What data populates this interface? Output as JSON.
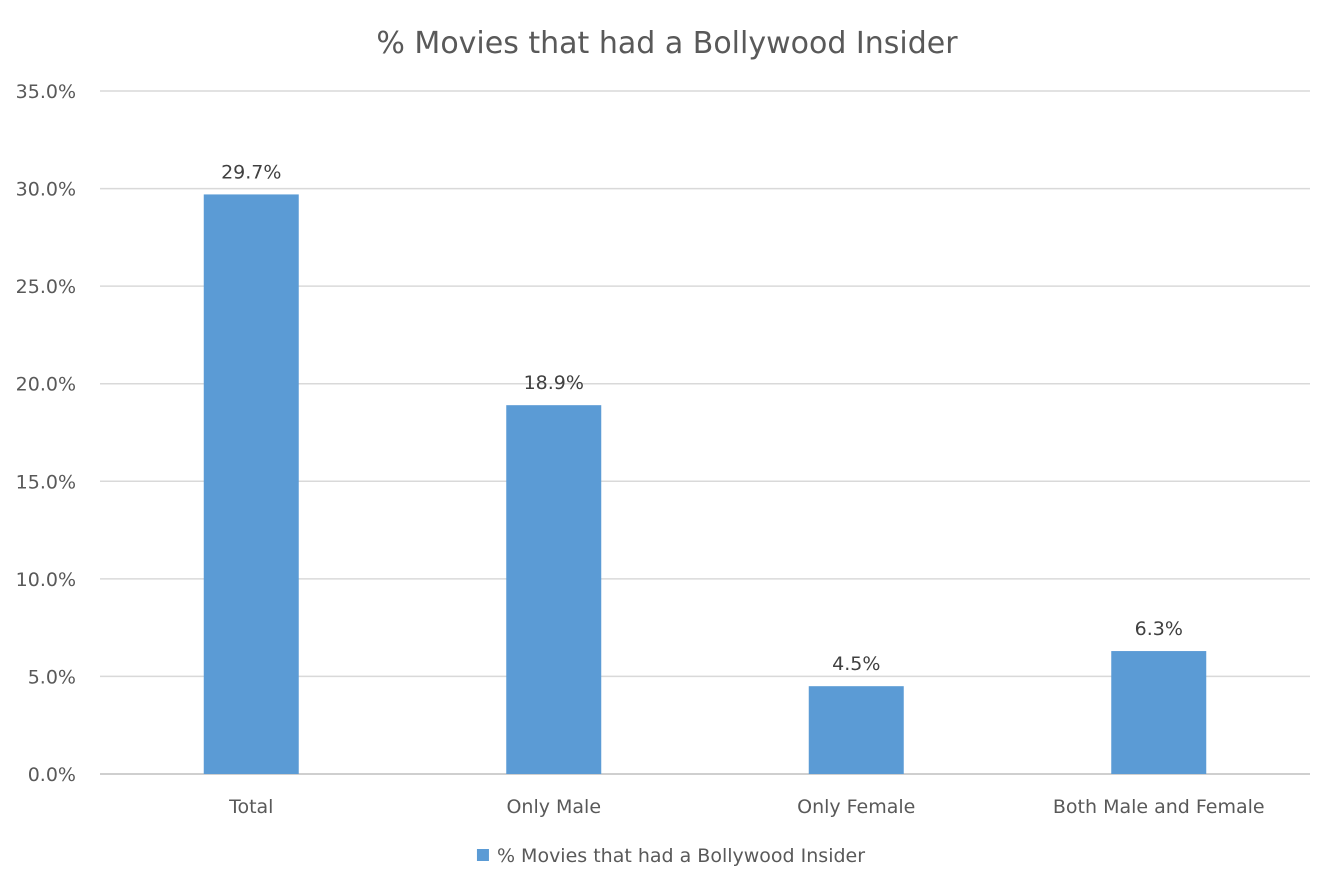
{
  "chart_data": {
    "type": "bar",
    "title": "% Movies that had a Bollywood Insider",
    "categories": [
      "Total",
      "Only Male",
      "Only Female",
      "Both Male and Female"
    ],
    "series": [
      {
        "name": "% Movies that had a Bollywood Insider",
        "values": [
          29.7,
          18.9,
          4.5,
          6.3
        ],
        "data_labels": [
          "29.7%",
          "18.9%",
          "4.5%",
          "6.3%"
        ],
        "color": "#5b9bd5"
      }
    ],
    "ylim": [
      0,
      35
    ],
    "yticks": [
      0,
      5,
      10,
      15,
      20,
      25,
      30,
      35
    ],
    "ytick_labels": [
      "0.0%",
      "5.0%",
      "10.0%",
      "15.0%",
      "20.0%",
      "25.0%",
      "30.0%",
      "35.0%"
    ],
    "grid": true,
    "legend_position": "bottom",
    "xlabel": "",
    "ylabel": ""
  }
}
